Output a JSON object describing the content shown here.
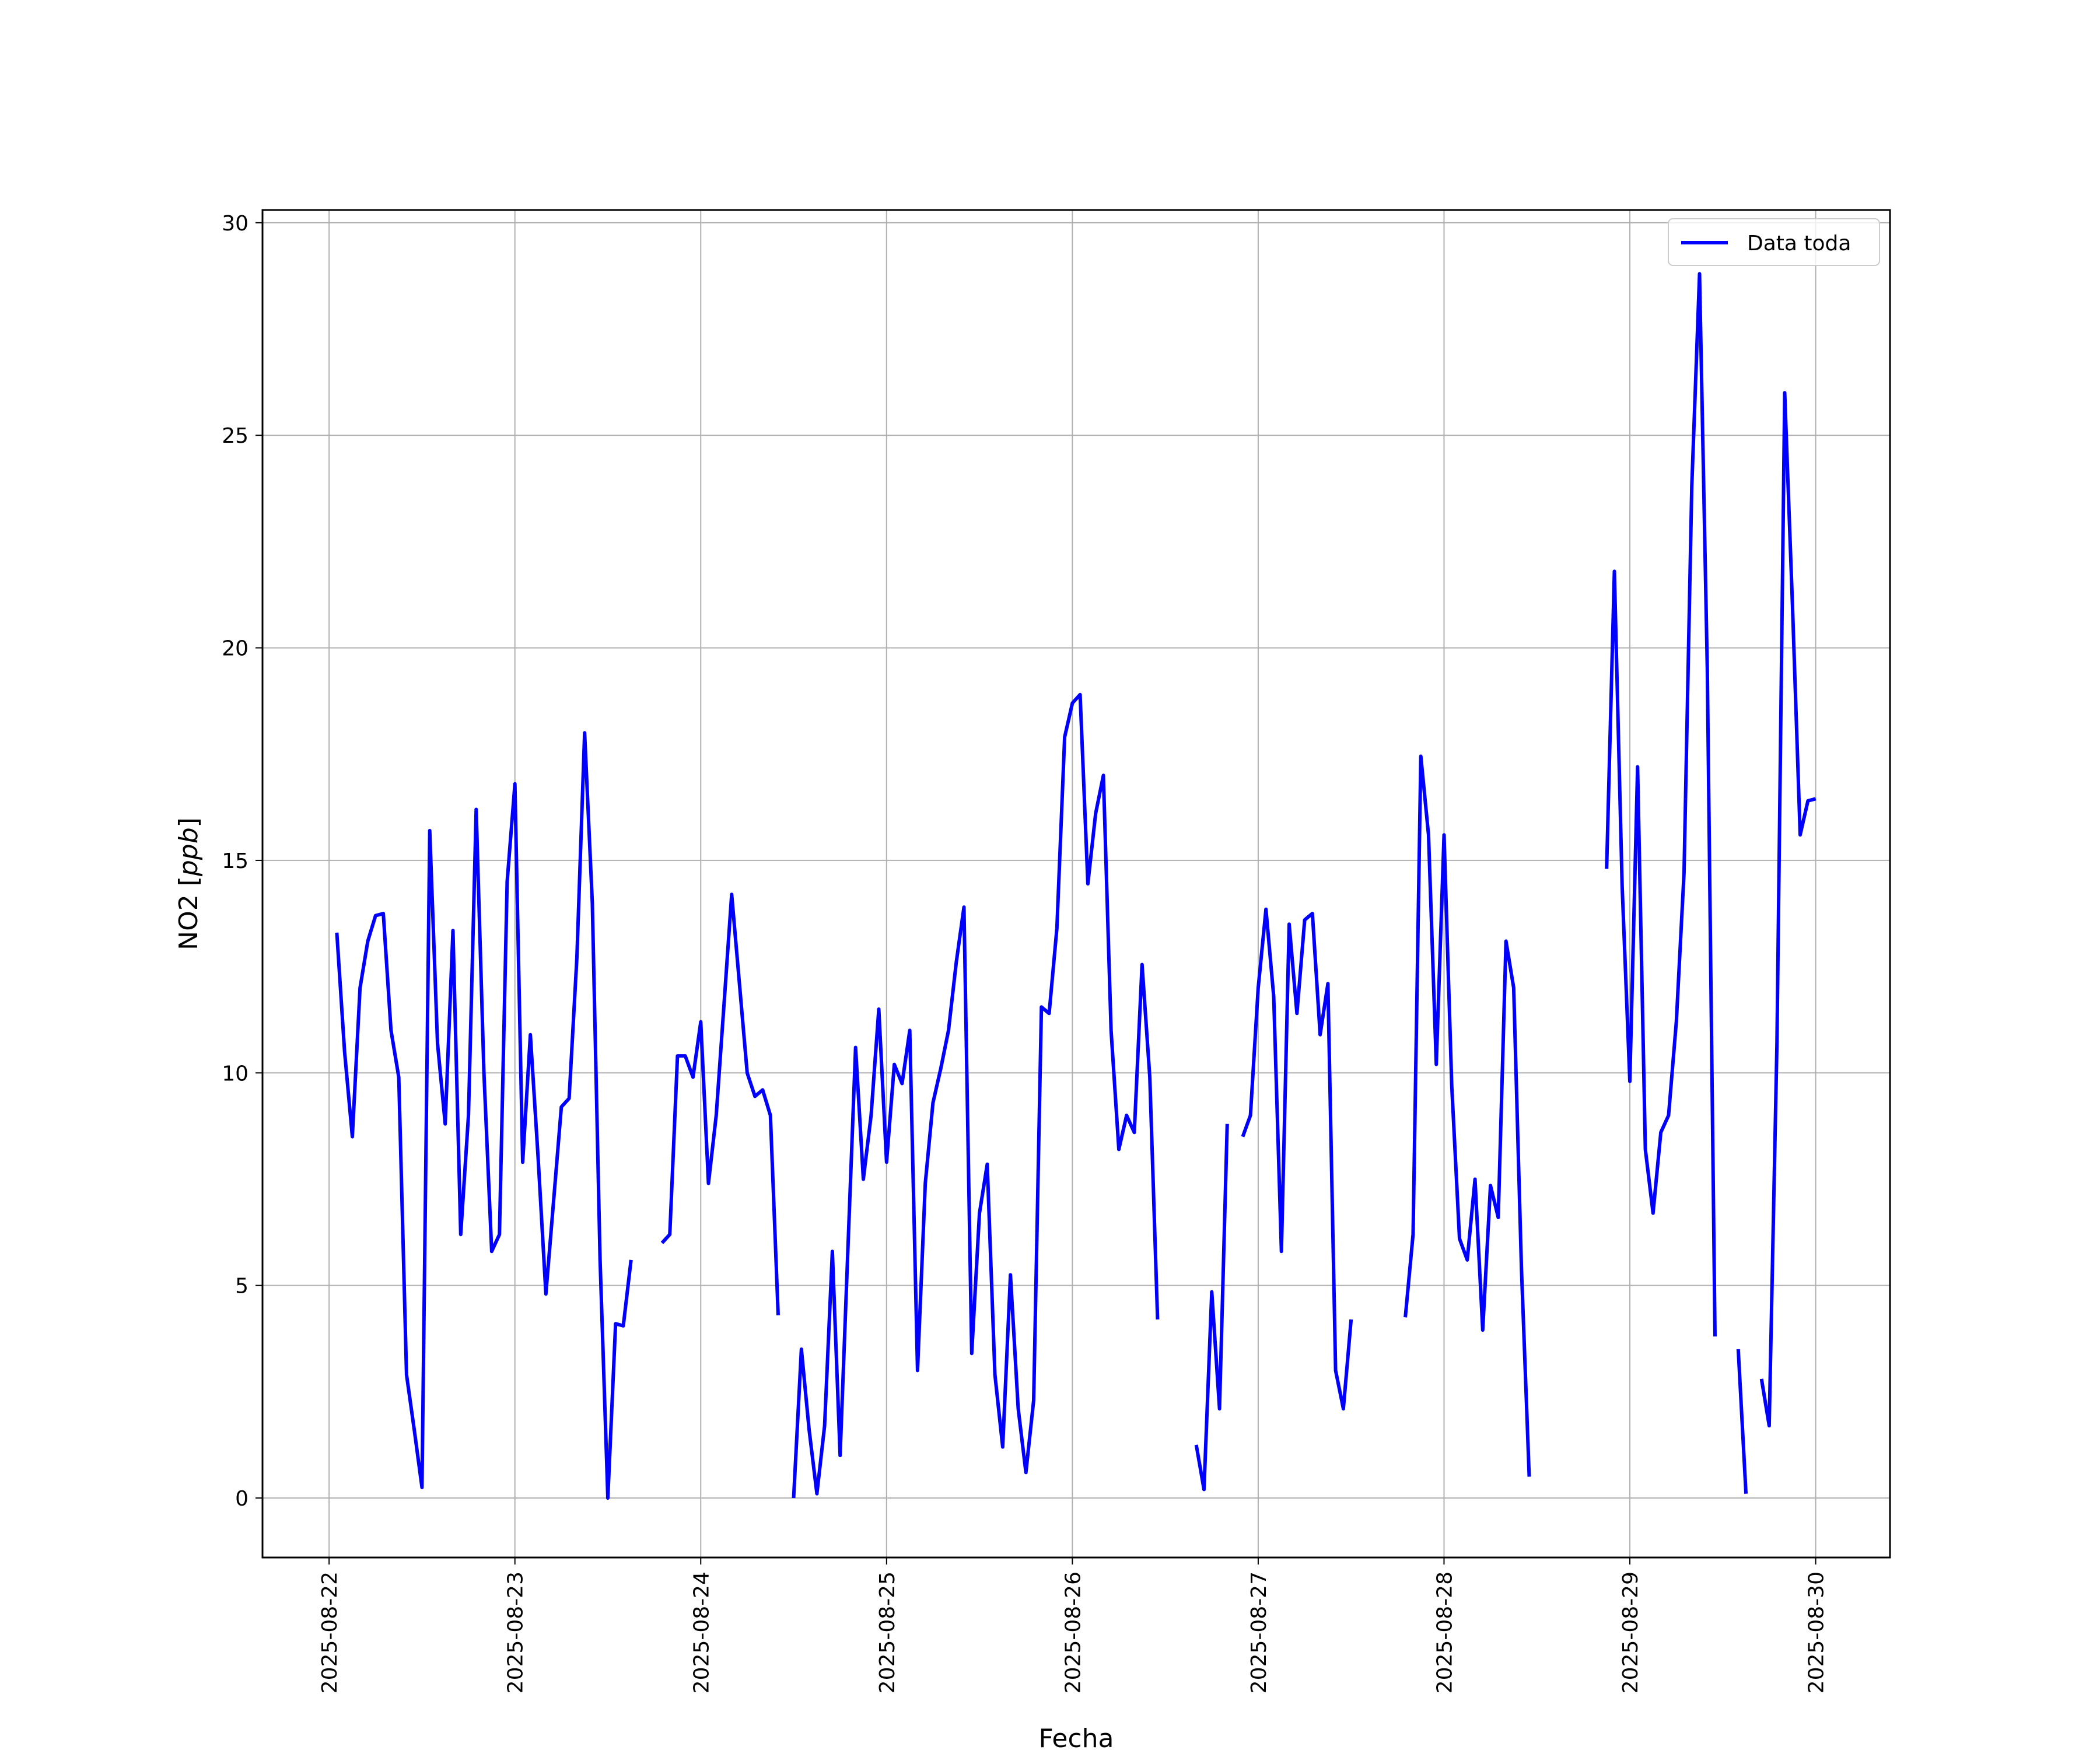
{
  "chart_data": {
    "type": "line",
    "title": "",
    "xlabel": "Fecha",
    "ylabel_main": "NO2 [",
    "ylabel_unit": "ppb",
    "ylabel_end": "]",
    "legend": {
      "label": "Data toda",
      "placement": "top-right"
    },
    "grid": true,
    "line_color": "#0000ff",
    "xlim": [
      "2025-08-21 15:24",
      "2025-08-30 09:36"
    ],
    "ylim": [
      -1.4,
      30.3
    ],
    "x_ticks": [
      "2025-08-22",
      "2025-08-23",
      "2025-08-24",
      "2025-08-25",
      "2025-08-26",
      "2025-08-27",
      "2025-08-28",
      "2025-08-29",
      "2025-08-30"
    ],
    "y_ticks": [
      0,
      5,
      10,
      15,
      20,
      25,
      30
    ],
    "series": [
      {
        "name": "Data toda",
        "points": [
          [
            "2025-08-22 01:00",
            13.3
          ],
          [
            "2025-08-22 02:00",
            10.5
          ],
          [
            "2025-08-22 03:00",
            8.5
          ],
          [
            "2025-08-22 04:00",
            12.0
          ],
          [
            "2025-08-22 05:00",
            13.1
          ],
          [
            "2025-08-22 06:00",
            13.7
          ],
          [
            "2025-08-22 07:00",
            13.75
          ],
          [
            "2025-08-22 08:00",
            11.0
          ],
          [
            "2025-08-22 09:00",
            9.9
          ],
          [
            "2025-08-22 10:00",
            2.9
          ],
          [
            "2025-08-22 11:00",
            1.6
          ],
          [
            "2025-08-22 12:00",
            0.25
          ],
          [
            "2025-08-22 13:00",
            15.7
          ],
          [
            "2025-08-22 14:00",
            10.7
          ],
          [
            "2025-08-22 15:00",
            8.8
          ],
          [
            "2025-08-22 16:00",
            13.35
          ],
          [
            "2025-08-22 17:00",
            6.2
          ],
          [
            "2025-08-22 18:00",
            9.0
          ],
          [
            "2025-08-22 19:00",
            16.2
          ],
          [
            "2025-08-22 20:00",
            10.0
          ],
          [
            "2025-08-22 21:00",
            5.8
          ],
          [
            "2025-08-22 22:00",
            6.2
          ],
          [
            "2025-08-22 23:00",
            14.5
          ],
          [
            "2025-08-23 00:00",
            16.8
          ],
          [
            "2025-08-23 01:00",
            7.9
          ],
          [
            "2025-08-23 02:00",
            10.9
          ],
          [
            "2025-08-23 03:00",
            8.0
          ],
          [
            "2025-08-23 04:00",
            4.8
          ],
          [
            "2025-08-23 05:00",
            7.0
          ],
          [
            "2025-08-23 06:00",
            9.2
          ],
          [
            "2025-08-23 07:00",
            9.4
          ],
          [
            "2025-08-23 08:00",
            12.7
          ],
          [
            "2025-08-23 09:00",
            18.0
          ],
          [
            "2025-08-23 10:00",
            14.0
          ],
          [
            "2025-08-23 11:00",
            5.6
          ],
          [
            "2025-08-23 12:00",
            0.0
          ],
          [
            "2025-08-23 13:00",
            4.1
          ],
          [
            "2025-08-23 14:00",
            4.05
          ],
          [
            "2025-08-23 15:00",
            5.6
          ],
          [
            "2025-08-23 16:00",
            null
          ],
          [
            "2025-08-23 19:00",
            6.0
          ],
          [
            "2025-08-23 20:00",
            6.2
          ],
          [
            "2025-08-23 21:00",
            10.4
          ],
          [
            "2025-08-23 22:00",
            10.4
          ],
          [
            "2025-08-23 23:00",
            9.9
          ],
          [
            "2025-08-24 00:00",
            11.2
          ],
          [
            "2025-08-24 01:00",
            7.4
          ],
          [
            "2025-08-24 02:00",
            9.0
          ],
          [
            "2025-08-24 03:00",
            11.6
          ],
          [
            "2025-08-24 04:00",
            14.2
          ],
          [
            "2025-08-24 05:00",
            12.1
          ],
          [
            "2025-08-24 06:00",
            10.0
          ],
          [
            "2025-08-24 07:00",
            9.45
          ],
          [
            "2025-08-24 08:00",
            9.6
          ],
          [
            "2025-08-24 09:00",
            9.0
          ],
          [
            "2025-08-24 10:00",
            4.3
          ],
          [
            "2025-08-24 11:00",
            null
          ],
          [
            "2025-08-24 12:00",
            0.0
          ],
          [
            "2025-08-24 13:00",
            3.5
          ],
          [
            "2025-08-24 14:00",
            1.6
          ],
          [
            "2025-08-24 15:00",
            0.1
          ],
          [
            "2025-08-24 16:00",
            1.7
          ],
          [
            "2025-08-24 17:00",
            5.8
          ],
          [
            "2025-08-24 18:00",
            1.0
          ],
          [
            "2025-08-24 19:00",
            5.8
          ],
          [
            "2025-08-24 20:00",
            10.6
          ],
          [
            "2025-08-24 21:00",
            7.5
          ],
          [
            "2025-08-24 22:00",
            9.0
          ],
          [
            "2025-08-24 23:00",
            11.5
          ],
          [
            "2025-08-25 00:00",
            7.9
          ],
          [
            "2025-08-25 01:00",
            10.2
          ],
          [
            "2025-08-25 02:00",
            9.75
          ],
          [
            "2025-08-25 03:00",
            11.0
          ],
          [
            "2025-08-25 04:00",
            3.0
          ],
          [
            "2025-08-25 05:00",
            7.4
          ],
          [
            "2025-08-25 06:00",
            9.3
          ],
          [
            "2025-08-25 07:00",
            10.1
          ],
          [
            "2025-08-25 08:00",
            11.0
          ],
          [
            "2025-08-25 09:00",
            12.6
          ],
          [
            "2025-08-25 10:00",
            13.9
          ],
          [
            "2025-08-25 11:00",
            3.4
          ],
          [
            "2025-08-25 12:00",
            6.7
          ],
          [
            "2025-08-25 13:00",
            7.85
          ],
          [
            "2025-08-25 14:00",
            2.9
          ],
          [
            "2025-08-25 15:00",
            1.2
          ],
          [
            "2025-08-25 16:00",
            5.25
          ],
          [
            "2025-08-25 17:00",
            2.1
          ],
          [
            "2025-08-25 18:00",
            0.6
          ],
          [
            "2025-08-25 19:00",
            2.3
          ],
          [
            "2025-08-25 20:00",
            11.55
          ],
          [
            "2025-08-25 21:00",
            11.4
          ],
          [
            "2025-08-25 22:00",
            13.4
          ],
          [
            "2025-08-25 23:00",
            17.9
          ],
          [
            "2025-08-26 00:00",
            18.7
          ],
          [
            "2025-08-26 01:00",
            18.9
          ],
          [
            "2025-08-26 02:00",
            14.45
          ],
          [
            "2025-08-26 03:00",
            16.1
          ],
          [
            "2025-08-26 04:00",
            17.0
          ],
          [
            "2025-08-26 05:00",
            11.0
          ],
          [
            "2025-08-26 06:00",
            8.2
          ],
          [
            "2025-08-26 07:00",
            9.0
          ],
          [
            "2025-08-26 08:00",
            8.6
          ],
          [
            "2025-08-26 09:00",
            12.55
          ],
          [
            "2025-08-26 10:00",
            9.9
          ],
          [
            "2025-08-26 11:00",
            4.2
          ],
          [
            "2025-08-26 12:00",
            null
          ],
          [
            "2025-08-26 16:00",
            1.25
          ],
          [
            "2025-08-26 17:00",
            0.2
          ],
          [
            "2025-08-26 18:00",
            4.85
          ],
          [
            "2025-08-26 19:00",
            2.1
          ],
          [
            "2025-08-26 20:00",
            8.8
          ],
          [
            "2025-08-26 21:00",
            null
          ],
          [
            "2025-08-26 22:00",
            8.5
          ],
          [
            "2025-08-26 23:00",
            9.0
          ],
          [
            "2025-08-27 00:00",
            12.0
          ],
          [
            "2025-08-27 01:00",
            13.85
          ],
          [
            "2025-08-27 02:00",
            11.8
          ],
          [
            "2025-08-27 03:00",
            5.8
          ],
          [
            "2025-08-27 04:00",
            13.5
          ],
          [
            "2025-08-27 05:00",
            11.4
          ],
          [
            "2025-08-27 06:00",
            13.6
          ],
          [
            "2025-08-27 07:00",
            13.75
          ],
          [
            "2025-08-27 08:00",
            10.9
          ],
          [
            "2025-08-27 09:00",
            12.1
          ],
          [
            "2025-08-27 10:00",
            3.0
          ],
          [
            "2025-08-27 11:00",
            2.1
          ],
          [
            "2025-08-27 12:00",
            4.2
          ],
          [
            "2025-08-27 13:00",
            null
          ],
          [
            "2025-08-27 19:00",
            4.25
          ],
          [
            "2025-08-27 20:00",
            6.2
          ],
          [
            "2025-08-27 21:00",
            17.45
          ],
          [
            "2025-08-27 22:00",
            15.6
          ],
          [
            "2025-08-27 23:00",
            10.2
          ],
          [
            "2025-08-28 00:00",
            15.6
          ],
          [
            "2025-08-28 01:00",
            9.7
          ],
          [
            "2025-08-28 02:00",
            6.1
          ],
          [
            "2025-08-28 03:00",
            5.6
          ],
          [
            "2025-08-28 04:00",
            7.5
          ],
          [
            "2025-08-28 05:00",
            3.95
          ],
          [
            "2025-08-28 06:00",
            7.35
          ],
          [
            "2025-08-28 07:00",
            6.6
          ],
          [
            "2025-08-28 08:00",
            13.1
          ],
          [
            "2025-08-28 09:00",
            12.0
          ],
          [
            "2025-08-28 10:00",
            5.4
          ],
          [
            "2025-08-28 11:00",
            0.5
          ],
          [
            "2025-08-28 12:00",
            null
          ],
          [
            "2025-08-28 21:00",
            14.8
          ],
          [
            "2025-08-28 22:00",
            21.8
          ],
          [
            "2025-08-28 23:00",
            14.4
          ],
          [
            "2025-08-29 00:00",
            9.8
          ],
          [
            "2025-08-29 01:00",
            17.2
          ],
          [
            "2025-08-29 02:00",
            8.2
          ],
          [
            "2025-08-29 03:00",
            6.7
          ],
          [
            "2025-08-29 04:00",
            8.6
          ],
          [
            "2025-08-29 05:00",
            9.0
          ],
          [
            "2025-08-29 06:00",
            11.2
          ],
          [
            "2025-08-29 07:00",
            14.7
          ],
          [
            "2025-08-29 08:00",
            23.8
          ],
          [
            "2025-08-29 09:00",
            28.8
          ],
          [
            "2025-08-29 10:00",
            19.5
          ],
          [
            "2025-08-29 11:00",
            3.8
          ],
          [
            "2025-08-29 12:00",
            null
          ],
          [
            "2025-08-29 14:00",
            3.5
          ],
          [
            "2025-08-29 15:00",
            0.1
          ],
          [
            "2025-08-29 16:00",
            null
          ],
          [
            "2025-08-29 17:00",
            2.8
          ],
          [
            "2025-08-29 18:00",
            1.7
          ],
          [
            "2025-08-29 19:00",
            10.7
          ],
          [
            "2025-08-29 20:00",
            26.0
          ],
          [
            "2025-08-29 21:00",
            21.0
          ],
          [
            "2025-08-29 22:00",
            15.6
          ],
          [
            "2025-08-29 23:00",
            16.4
          ],
          [
            "2025-08-30 00:00",
            16.45
          ]
        ]
      }
    ]
  }
}
